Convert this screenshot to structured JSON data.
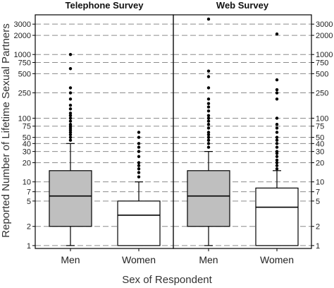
{
  "chart_data": {
    "type": "box",
    "xlabel": "Sex of Respondent",
    "ylabel": "Reported Number of Lifetime Sexual Partners",
    "y_scale": "log",
    "ylim": [
      0.9,
      4200
    ],
    "y_ticks": [
      1,
      2,
      5,
      7,
      10,
      20,
      30,
      40,
      50,
      75,
      100,
      250,
      500,
      750,
      1000,
      2000,
      3000
    ],
    "y_tick_labels": [
      "1",
      "2",
      "5",
      "7",
      "10",
      "20",
      "30",
      "40",
      "50",
      "75",
      "100",
      "250",
      "500",
      "750",
      "1000",
      "2000",
      "3000"
    ],
    "categories": [
      "Men",
      "Women"
    ],
    "grid": "horizontal dashed",
    "colors": {
      "men_box": "#bfbfbf",
      "women_box": "#ffffff",
      "grid": "#8c8c8c"
    },
    "panels": [
      {
        "title": "Telephone Survey",
        "boxes": [
          {
            "category": "Men",
            "whisker_low": 1,
            "q1": 2,
            "median": 6,
            "q3": 15,
            "whisker_high": 40,
            "outliers": [
              1000,
              600,
              300,
              250,
              200,
              160,
              140,
              120,
              110,
              100,
              90,
              80,
              75,
              70,
              65,
              60,
              55,
              50,
              45
            ]
          },
          {
            "category": "Women",
            "whisker_low": 1,
            "q1": 1,
            "median": 3,
            "q3": 5,
            "whisker_high": 10,
            "outliers": [
              60,
              50,
              40,
              35,
              30,
              25,
              20,
              18,
              16,
              14,
              12
            ]
          }
        ]
      },
      {
        "title": "Web Survey",
        "boxes": [
          {
            "category": "Men",
            "whisker_low": 1,
            "q1": 2,
            "median": 6,
            "q3": 15,
            "whisker_high": 30,
            "outliers": [
              3600,
              550,
              450,
              300,
              200,
              170,
              150,
              130,
              110,
              100,
              90,
              80,
              70,
              60,
              55,
              50,
              45,
              40,
              35
            ]
          },
          {
            "category": "Women",
            "whisker_low": 1,
            "q1": 1,
            "median": 4,
            "q3": 8,
            "whisker_high": 15,
            "outliers": [
              2100,
              400,
              280,
              250,
              200,
              100,
              80,
              70,
              60,
              50,
              45,
              40,
              35,
              30,
              28,
              25,
              22,
              20,
              18,
              16
            ]
          }
        ]
      }
    ]
  }
}
